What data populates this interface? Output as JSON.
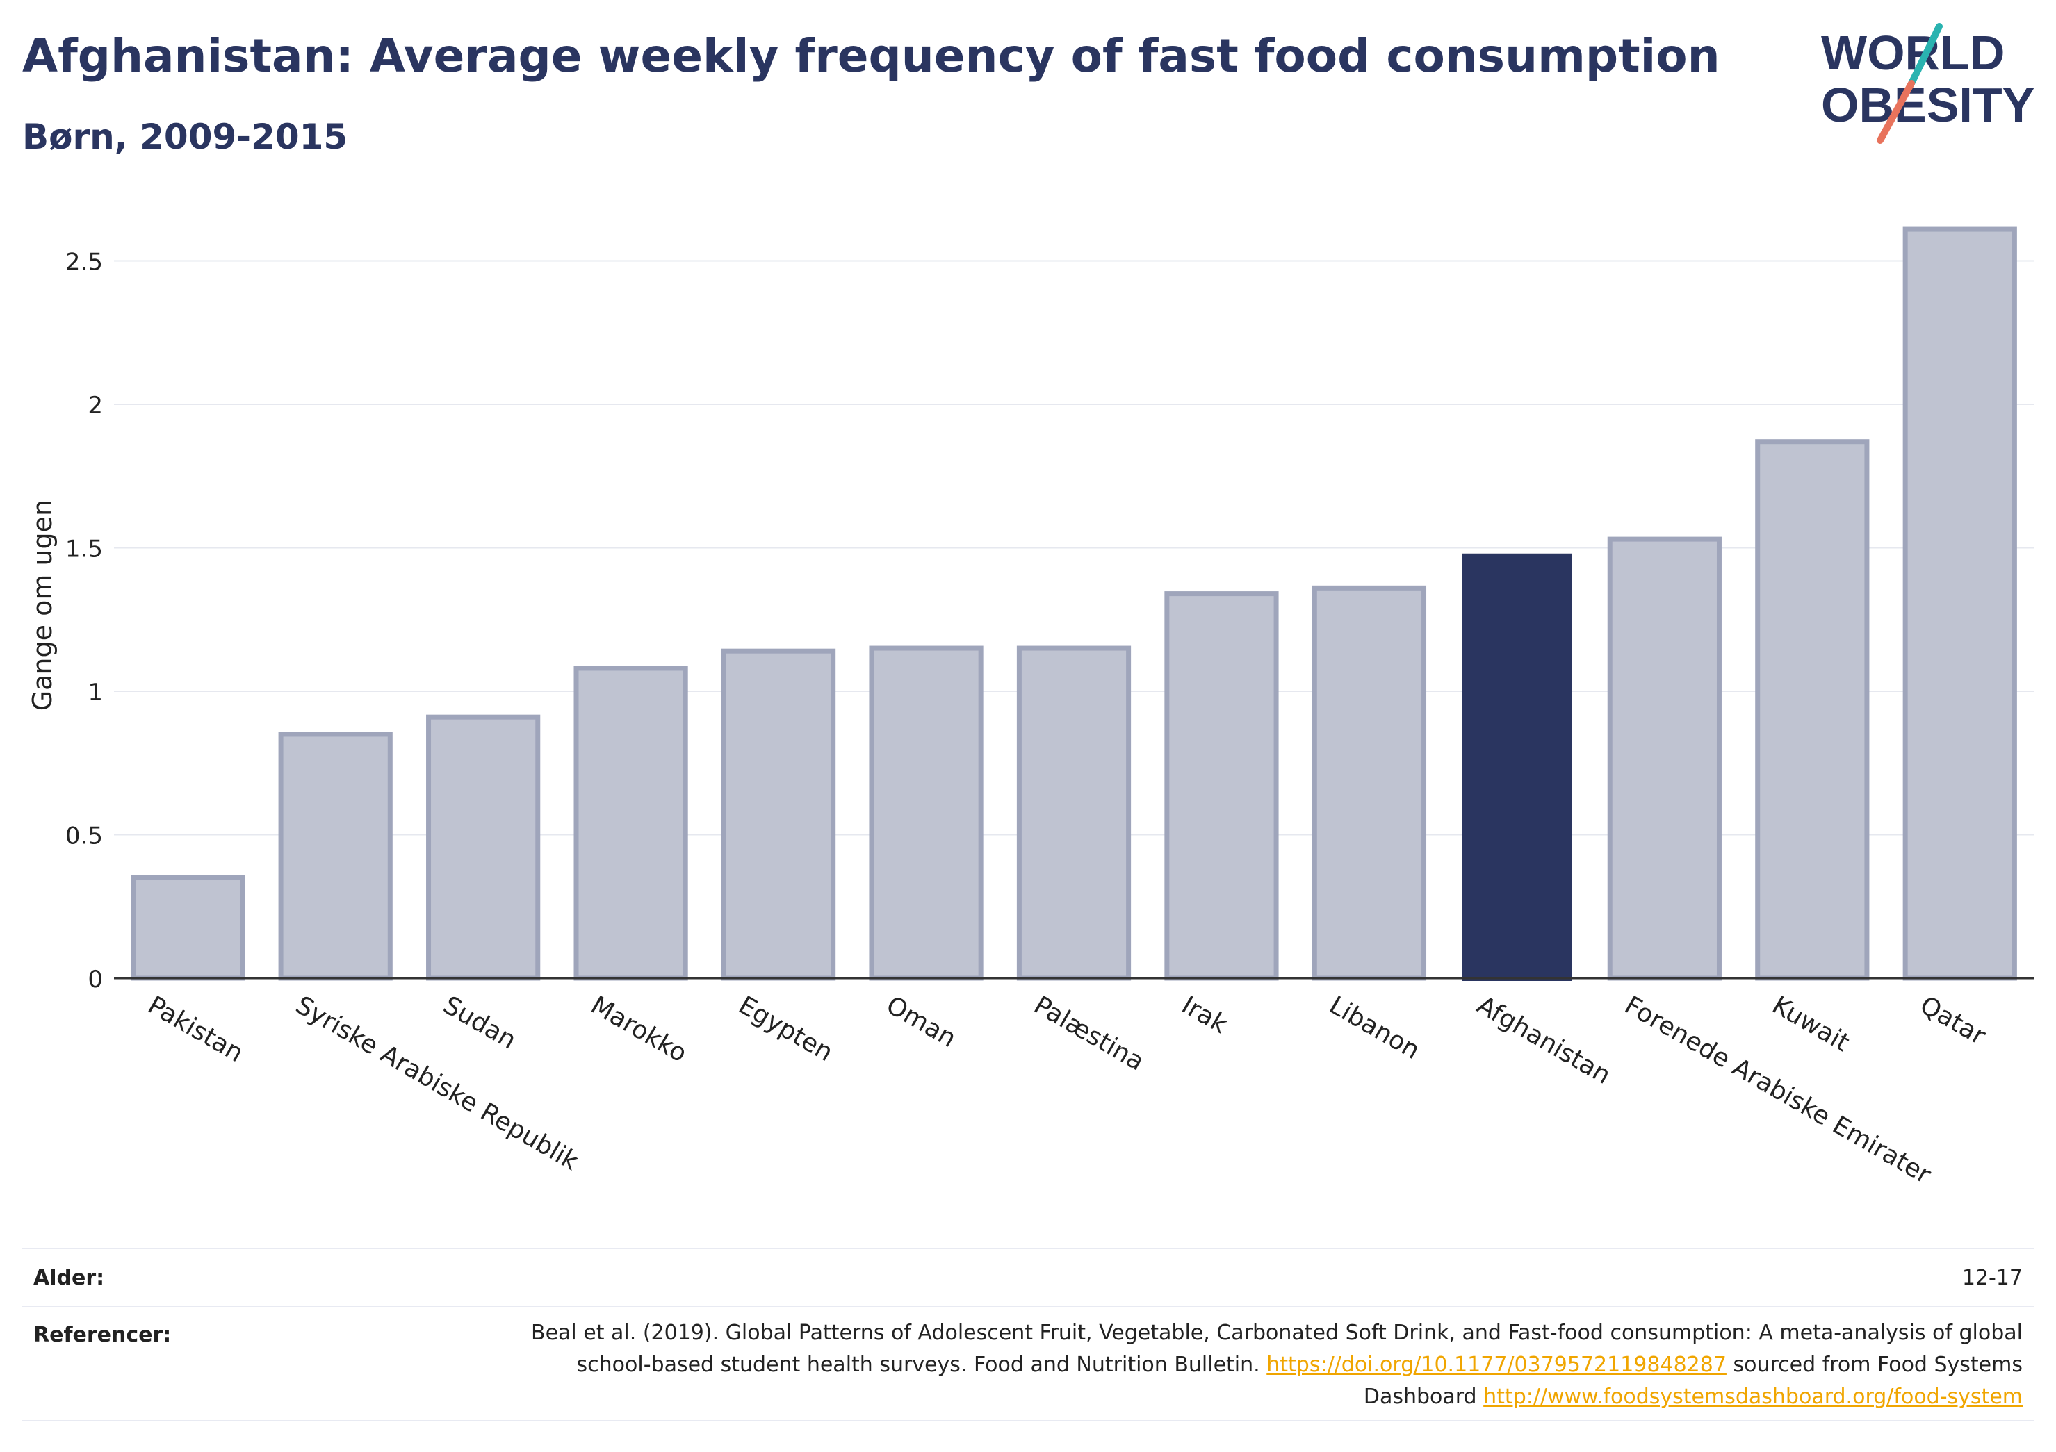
{
  "header": {
    "title": "Afghanistan: Average weekly frequency of fast food consumption",
    "subtitle": "Børn, 2009-2015",
    "logo_text_1": "WORLD",
    "logo_text_2": "OBESITY"
  },
  "chart_data": {
    "type": "bar",
    "ylabel": "Gange om ugen",
    "ylim": [
      0,
      2.7
    ],
    "yticks": [
      "0",
      "0.5",
      "1",
      "1.5",
      "2",
      "2.5"
    ],
    "ytick_values": [
      0,
      0.5,
      1,
      1.5,
      2,
      2.5
    ],
    "grid": true,
    "categories": [
      "Pakistan",
      "Syriske Arabiske Republik",
      "Sudan",
      "Marokko",
      "Egypten",
      "Oman",
      "Palæstina",
      "Irak",
      "Libanon",
      "Afghanistan",
      "Forenede Arabiske Emirater",
      "Kuwait",
      "Qatar"
    ],
    "values": [
      0.35,
      0.85,
      0.91,
      1.08,
      1.14,
      1.15,
      1.15,
      1.34,
      1.36,
      1.48,
      1.53,
      1.87,
      2.61
    ],
    "highlight": "Afghanistan",
    "colors": {
      "bar": "#bfc3d1",
      "bar_border": "#9fa5bb",
      "highlight": "#2a3560",
      "grid": "#e6e8ef",
      "axis": "#333333"
    }
  },
  "footer": {
    "age_label": "Alder:",
    "age_value": "12-17",
    "ref_label": "Referencer:",
    "ref_text_1": "Beal et al. (2019). Global Patterns of Adolescent Fruit, Vegetable, Carbonated Soft Drink, and Fast-food consumption: A meta-analysis of global school-based student health surveys. Food and Nutrition Bulletin.",
    "ref_link_1": "https://doi.org/10.1177/0379572119848287",
    "ref_text_2": "sourced from Food Systems Dashboard",
    "ref_link_2": "http://www.foodsystemsdashboard.org/food-system"
  }
}
